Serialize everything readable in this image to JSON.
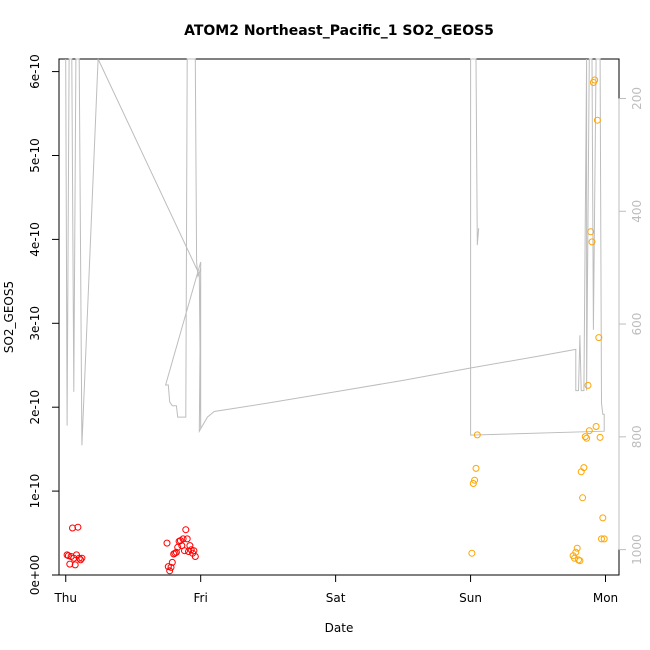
{
  "chart_data": {
    "type": "scatter",
    "title": "ATOM2 Northeast_Pacific_1 SO2_GEOS5",
    "xlabel": "Date",
    "ylabel": "SO2_GEOS5",
    "x_ticks": [
      "Thu",
      "Fri",
      "Sat",
      "Sun",
      "Mon"
    ],
    "xlim": [
      -0.05,
      4.1
    ],
    "ylim": [
      0,
      6.15e-10
    ],
    "y_ticks": [
      0,
      1e-10,
      2e-10,
      3e-10,
      4e-10,
      5e-10,
      6e-10
    ],
    "y_tick_labels": [
      "0e+00",
      "1e-10",
      "2e-10",
      "3e-10",
      "4e-10",
      "5e-10",
      "6e-10"
    ],
    "y2_range_top_to_bottom": [
      130,
      1045
    ],
    "y2_ticks": [
      200,
      400,
      600,
      800,
      1000
    ],
    "colors": {
      "series_red": "#ff0000",
      "series_orange": "#ffa500",
      "pressure_line": "#bdbdbd"
    },
    "series": [
      {
        "color": "#ff0000",
        "points": [
          [
            0.01,
            2.4e-11
          ],
          [
            0.02,
            2.3e-11
          ],
          [
            0.03,
            1.3e-11
          ],
          [
            0.04,
            2.2e-11
          ],
          [
            0.05,
            5.6e-11
          ],
          [
            0.06,
            2e-11
          ],
          [
            0.07,
            1.2e-11
          ],
          [
            0.08,
            2.4e-11
          ],
          [
            0.09,
            5.7e-11
          ],
          [
            0.1,
            2e-11
          ],
          [
            0.11,
            1.8e-11
          ],
          [
            0.12,
            2e-11
          ],
          [
            0.75,
            3.8e-11
          ],
          [
            0.76,
            1e-11
          ],
          [
            0.77,
            5e-12
          ],
          [
            0.78,
            9e-12
          ],
          [
            0.79,
            1.5e-11
          ],
          [
            0.8,
            2.5e-11
          ],
          [
            0.81,
            2.6e-11
          ],
          [
            0.82,
            2.7e-11
          ],
          [
            0.83,
            3.3e-11
          ],
          [
            0.84,
            4e-11
          ],
          [
            0.85,
            4.1e-11
          ],
          [
            0.86,
            3.5e-11
          ],
          [
            0.87,
            4.3e-11
          ],
          [
            0.88,
            2.9e-11
          ],
          [
            0.89,
            5.4e-11
          ],
          [
            0.9,
            4.3e-11
          ],
          [
            0.91,
            2.8e-11
          ],
          [
            0.92,
            3.5e-11
          ],
          [
            0.93,
            3e-11
          ],
          [
            0.94,
            2.6e-11
          ],
          [
            0.95,
            2.9e-11
          ],
          [
            0.96,
            2.2e-11
          ]
        ]
      },
      {
        "color": "#ffa500",
        "points": [
          [
            3.01,
            2.6e-11
          ],
          [
            3.02,
            1.09e-10
          ],
          [
            3.03,
            1.13e-10
          ],
          [
            3.04,
            1.27e-10
          ],
          [
            3.05,
            1.67e-10
          ],
          [
            3.76,
            2.3e-11
          ],
          [
            3.77,
            2e-11
          ],
          [
            3.78,
            2.7e-11
          ],
          [
            3.79,
            3.2e-11
          ],
          [
            3.8,
            1.8e-11
          ],
          [
            3.81,
            1.7e-11
          ],
          [
            3.82,
            1.23e-10
          ],
          [
            3.83,
            9.2e-11
          ],
          [
            3.84,
            1.28e-10
          ],
          [
            3.85,
            1.65e-10
          ],
          [
            3.86,
            1.63e-10
          ],
          [
            3.87,
            2.26e-10
          ],
          [
            3.88,
            1.72e-10
          ],
          [
            3.89,
            4.09e-10
          ],
          [
            3.9,
            3.97e-10
          ],
          [
            3.91,
            5.87e-10
          ],
          [
            3.92,
            5.9e-10
          ],
          [
            3.93,
            1.77e-10
          ],
          [
            3.94,
            5.42e-10
          ],
          [
            3.95,
            2.83e-10
          ],
          [
            3.96,
            1.64e-10
          ],
          [
            3.97,
            4.3e-11
          ],
          [
            3.98,
            6.8e-11
          ],
          [
            3.99,
            4.3e-11
          ]
        ]
      },
      {
        "name": "pressure",
        "axis": "right",
        "color": "#bdbdbd",
        "points": [
          [
            0.0,
            130
          ],
          [
            0.01,
            780
          ],
          [
            0.025,
            130
          ],
          [
            0.045,
            130
          ],
          [
            0.06,
            720
          ],
          [
            0.075,
            130
          ],
          [
            0.1,
            130
          ],
          [
            0.12,
            815
          ],
          [
            0.24,
            130
          ],
          [
            0.99,
            512
          ],
          [
            1.0,
            785
          ],
          [
            1.0,
            490
          ],
          [
            0.74,
            708
          ],
          [
            0.76,
            708
          ],
          [
            0.77,
            738
          ],
          [
            0.79,
            745
          ],
          [
            0.82,
            745
          ],
          [
            0.83,
            765
          ],
          [
            0.89,
            765
          ],
          [
            0.9,
            130
          ],
          [
            0.93,
            130
          ],
          [
            0.94,
            130
          ],
          [
            0.96,
            130
          ],
          [
            0.97,
            490
          ],
          [
            0.98,
            515
          ],
          [
            0.99,
            510
          ],
          [
            1.0,
            500
          ],
          [
            0.99,
            790
          ],
          [
            1.05,
            765
          ],
          [
            1.1,
            755
          ],
          [
            1.5,
            740
          ],
          [
            2.0,
            720
          ],
          [
            2.5,
            700
          ],
          [
            3.0,
            678
          ],
          [
            3.5,
            657
          ],
          [
            3.78,
            645
          ],
          [
            3.78,
            718
          ],
          [
            3.8,
            718
          ],
          [
            3.81,
            620
          ],
          [
            3.82,
            718
          ],
          [
            3.84,
            718
          ],
          [
            3.86,
            130
          ],
          [
            3.86,
            718
          ],
          [
            3.88,
            130
          ],
          [
            3.9,
            130
          ],
          [
            3.91,
            610
          ],
          [
            3.93,
            130
          ],
          [
            3.94,
            130
          ],
          [
            3.96,
            130
          ],
          [
            3.97,
            740
          ],
          [
            3.98,
            760
          ],
          [
            3.99,
            760
          ],
          [
            3.99,
            790
          ],
          [
            3.0,
            797
          ],
          [
            3.0,
            130
          ],
          [
            3.04,
            130
          ],
          [
            3.05,
            460
          ],
          [
            3.06,
            430
          ]
        ]
      }
    ]
  }
}
